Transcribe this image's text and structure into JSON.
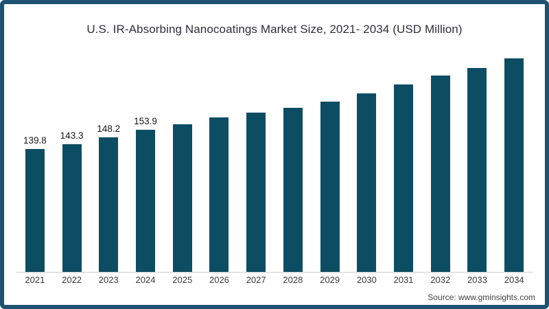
{
  "frame": {
    "border_color": "#1d5270",
    "background": "#ffffff"
  },
  "source_note": "Source: www.gminsights.com",
  "chart_data": {
    "type": "bar",
    "title": "U.S. IR-Absorbing Nanocoatings Market Size, 2021- 2034 (USD Million)",
    "xlabel": "",
    "ylabel": "",
    "categories": [
      "2021",
      "2022",
      "2023",
      "2024",
      "2025",
      "2026",
      "2027",
      "2028",
      "2029",
      "2030",
      "2031",
      "2032",
      "2033",
      "2034"
    ],
    "values": [
      139.8,
      143.3,
      148.2,
      153.9,
      158.1,
      163.2,
      167.0,
      170.7,
      175.2,
      181.4,
      188.2,
      194.9,
      200.7,
      207.8
    ],
    "data_labels": [
      "139.8",
      "143.3",
      "148.2",
      "153.9",
      "",
      "",
      "",
      "",
      "",
      "",
      "",
      "",
      "",
      ""
    ],
    "bar_color": "#0d4d63",
    "value_label_color": "#141414",
    "tick_label_color": "#3a3a3a",
    "baseline_color": "#d0d0d0",
    "ylim": [
      47,
      210
    ],
    "gridlines": false,
    "legend_position": "none"
  }
}
